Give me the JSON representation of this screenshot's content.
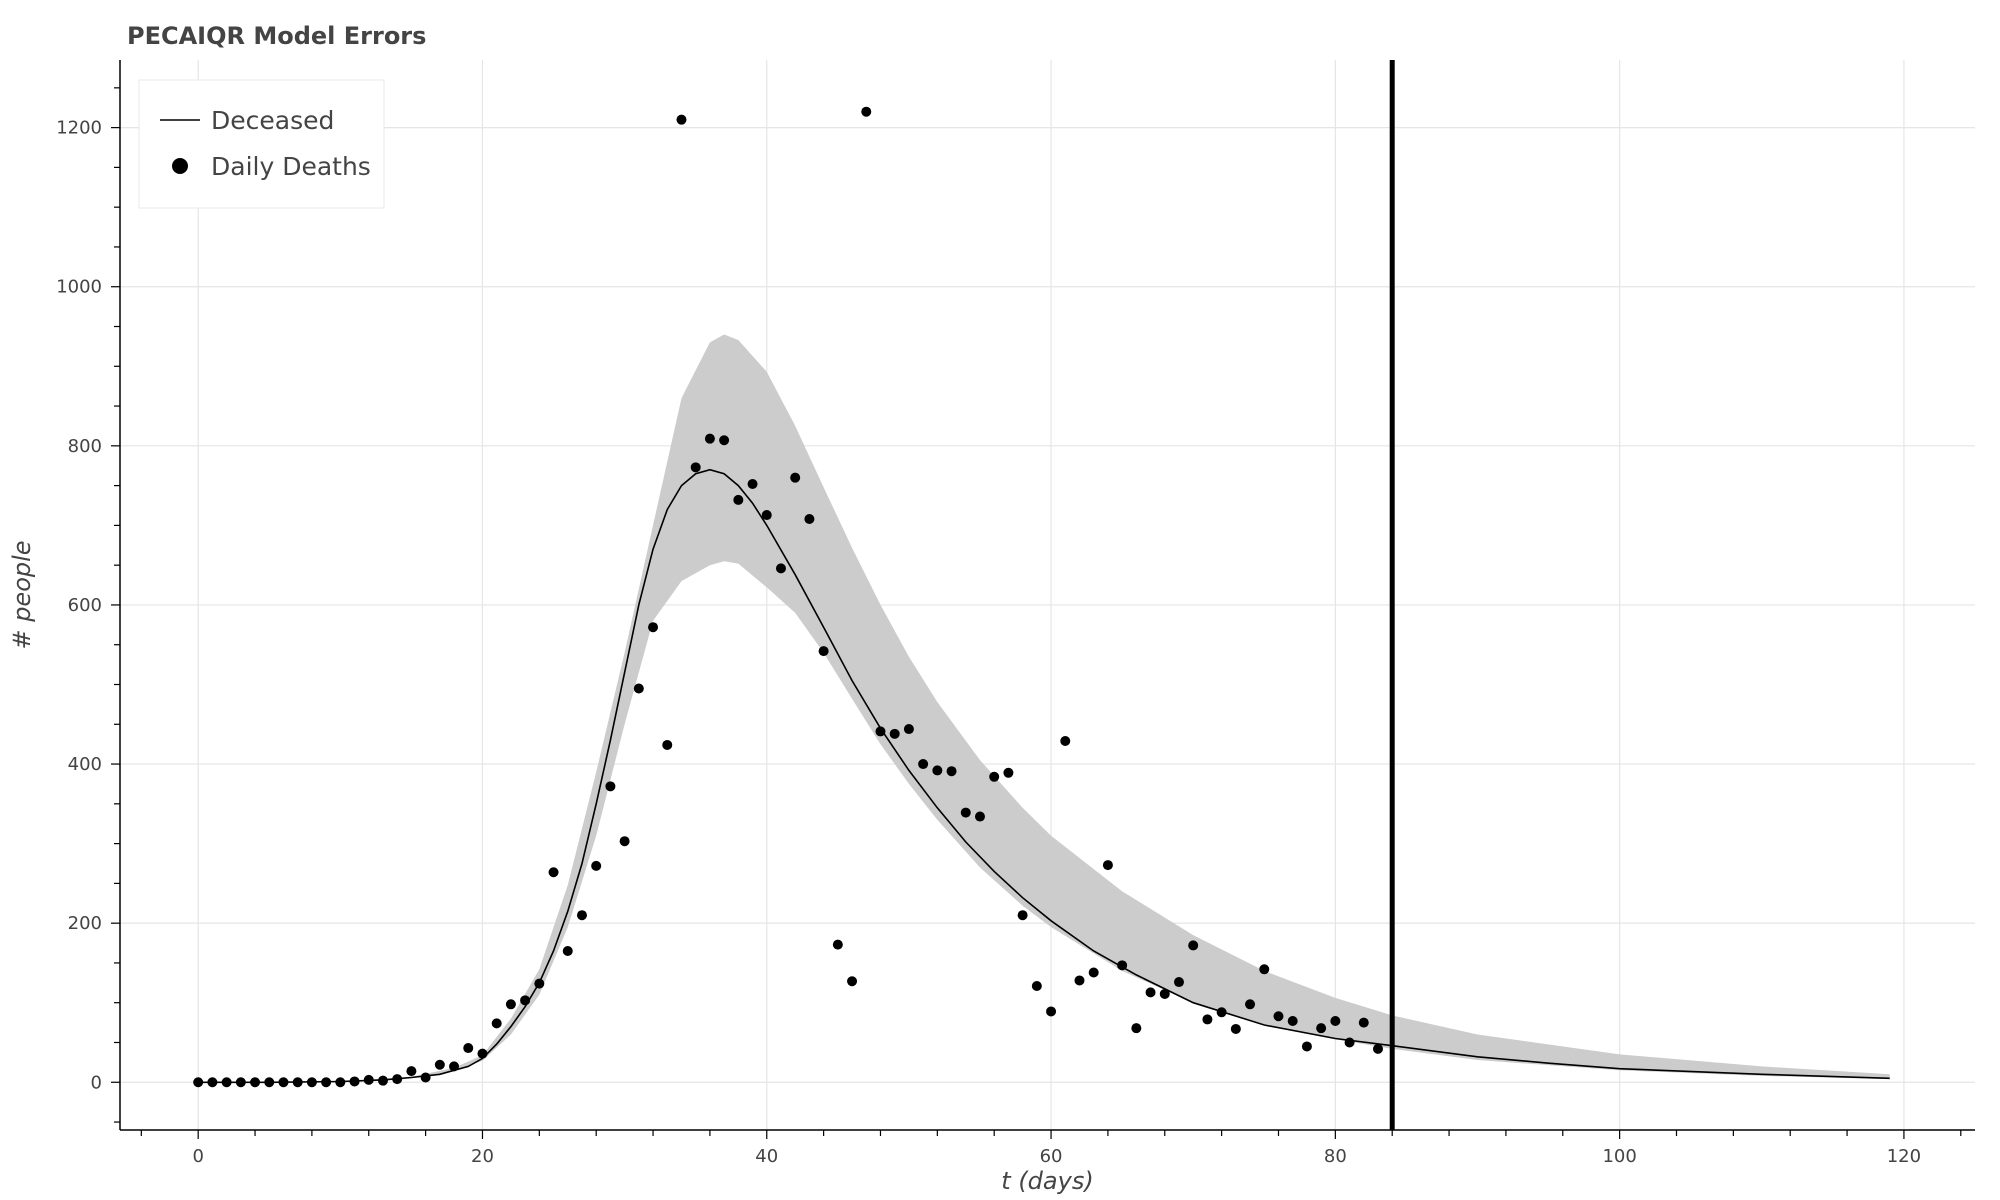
{
  "chart_data": {
    "type": "line",
    "title": "PECAIQR Model Errors",
    "xlabel": "t (days)",
    "ylabel": "# people",
    "xlim": [
      -5.5,
      125
    ],
    "ylim": [
      -60,
      1285
    ],
    "x_ticks": [
      0,
      20,
      40,
      60,
      80,
      100,
      120
    ],
    "y_ticks": [
      0,
      200,
      400,
      600,
      800,
      1000,
      1200
    ],
    "grid": true,
    "legend_position": "top-left",
    "vertical_marker_x": 84,
    "colors": {
      "line": "#000000",
      "band": "#cccccc",
      "points": "#000000",
      "grid": "#e5e5e5",
      "text": "#444444"
    },
    "series": [
      {
        "name": "Deceased",
        "type": "line",
        "x": [
          0,
          5,
          10,
          13,
          15,
          17,
          19,
          20,
          21,
          22,
          23,
          24,
          25,
          26,
          27,
          28,
          29,
          30,
          31,
          32,
          33,
          34,
          35,
          36,
          37,
          38,
          39,
          40,
          42,
          44,
          46,
          48,
          50,
          52,
          54,
          56,
          58,
          60,
          63,
          66,
          70,
          75,
          80,
          84,
          90,
          95,
          100,
          110,
          119
        ],
        "y": [
          0,
          0,
          1,
          3,
          6,
          10,
          20,
          30,
          48,
          70,
          95,
          125,
          165,
          215,
          275,
          350,
          430,
          515,
          600,
          670,
          720,
          750,
          765,
          770,
          765,
          750,
          728,
          700,
          638,
          572,
          505,
          445,
          392,
          345,
          302,
          265,
          232,
          203,
          165,
          135,
          100,
          72,
          55,
          46,
          32,
          24,
          17,
          10,
          5
        ]
      },
      {
        "name": "band",
        "type": "area",
        "x": [
          0,
          10,
          15,
          18,
          20,
          22,
          24,
          26,
          28,
          30,
          32,
          34,
          36,
          37,
          38,
          40,
          42,
          44,
          46,
          48,
          50,
          52,
          55,
          58,
          60,
          65,
          70,
          75,
          80,
          84,
          90,
          100,
          110,
          119
        ],
        "upper": [
          0,
          1,
          7,
          18,
          34,
          80,
          142,
          248,
          390,
          540,
          700,
          860,
          930,
          940,
          933,
          893,
          825,
          748,
          672,
          600,
          535,
          478,
          405,
          345,
          310,
          240,
          185,
          140,
          106,
          84,
          60,
          35,
          20,
          10
        ],
        "lower": [
          0,
          1,
          5,
          14,
          27,
          60,
          110,
          195,
          310,
          450,
          580,
          630,
          650,
          655,
          652,
          622,
          590,
          540,
          482,
          425,
          375,
          330,
          270,
          222,
          195,
          140,
          100,
          73,
          54,
          42,
          28,
          15,
          8,
          4
        ]
      },
      {
        "name": "Daily Deaths",
        "type": "scatter",
        "x": [
          0,
          1,
          2,
          3,
          4,
          5,
          6,
          7,
          8,
          9,
          10,
          11,
          12,
          13,
          14,
          15,
          16,
          17,
          18,
          19,
          20,
          21,
          22,
          23,
          24,
          25,
          26,
          27,
          28,
          29,
          30,
          31,
          32,
          33,
          34,
          35,
          36,
          37,
          38,
          39,
          40,
          41,
          42,
          43,
          44,
          45,
          46,
          47,
          48,
          49,
          50,
          51,
          52,
          53,
          54,
          55,
          56,
          57,
          58,
          59,
          60,
          61,
          62,
          63,
          64,
          65,
          66,
          67,
          68,
          69,
          70,
          71,
          72,
          73,
          74,
          75,
          76,
          77,
          78,
          79,
          80,
          81,
          82,
          83
        ],
        "y": [
          0,
          0,
          0,
          0,
          0,
          0,
          0,
          0,
          0,
          0,
          0,
          1,
          3,
          2,
          4,
          14,
          6,
          22,
          20,
          43,
          36,
          74,
          98,
          103,
          124,
          264,
          165,
          210,
          272,
          372,
          303,
          495,
          572,
          424,
          1210,
          773,
          809,
          807,
          732,
          752,
          713,
          646,
          760,
          708,
          542,
          173,
          127,
          1220,
          441,
          438,
          444,
          400,
          392,
          391,
          339,
          334,
          384,
          389,
          210,
          121,
          89,
          429,
          128,
          138,
          273,
          147,
          68,
          113,
          111,
          126,
          172,
          79,
          88,
          67,
          98,
          142,
          83,
          77,
          45,
          68,
          77,
          50,
          75,
          42
        ]
      }
    ]
  }
}
